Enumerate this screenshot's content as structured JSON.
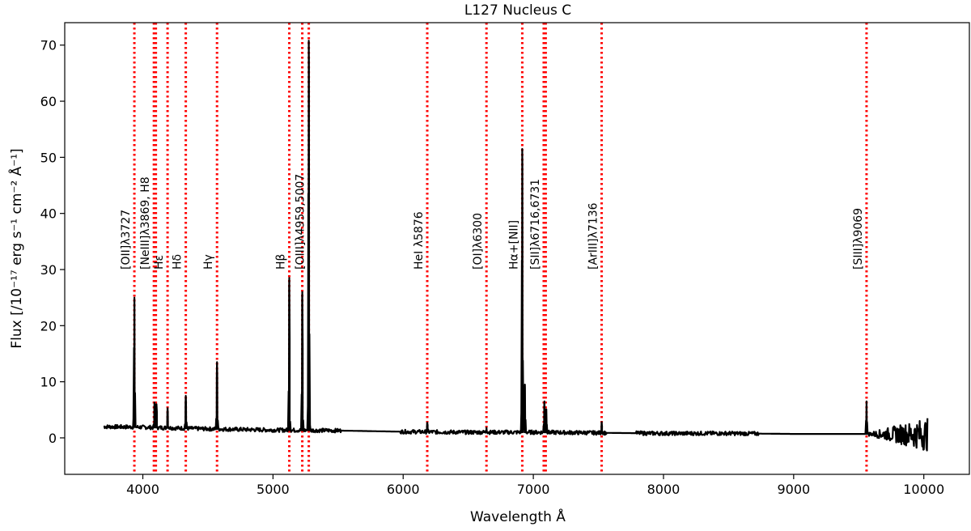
{
  "chart_data": {
    "type": "line",
    "title": "L127 Nucleus C",
    "xlabel": "Wavelength Å",
    "ylabel": "Flux  [/10⁻¹⁷ erg s⁻¹ cm⁻² Å⁻¹]",
    "xlim": [
      3400,
      10350
    ],
    "ylim": [
      -6.5,
      74
    ],
    "xticks": [
      4000,
      5000,
      6000,
      7000,
      8000,
      9000,
      10000
    ],
    "yticks": [
      0,
      10,
      20,
      30,
      40,
      50,
      60,
      70
    ],
    "grid": false,
    "series": [
      {
        "color": "#000000",
        "continuum": [
          [
            3700,
            2.0
          ],
          [
            4000,
            1.9
          ],
          [
            4500,
            1.6
          ],
          [
            5000,
            1.4
          ],
          [
            5500,
            1.3
          ],
          [
            6000,
            1.1
          ],
          [
            6500,
            1.0
          ],
          [
            7000,
            1.0
          ],
          [
            7500,
            0.9
          ],
          [
            8000,
            0.8
          ],
          [
            8500,
            0.8
          ],
          [
            9000,
            0.7
          ],
          [
            9500,
            0.7
          ],
          [
            10000,
            0.6
          ]
        ],
        "segments": [
          [
            3700,
            5520
          ],
          [
            5980,
            7560
          ],
          [
            7790,
            8730
          ],
          [
            9560,
            10030
          ]
        ],
        "lines": [
          {
            "x": 3935,
            "peak": 25.0
          },
          {
            "x": 4090,
            "peak": 6.3
          },
          {
            "x": 4105,
            "peak": 6.0
          },
          {
            "x": 4190,
            "peak": 5.3
          },
          {
            "x": 4330,
            "peak": 7.5
          },
          {
            "x": 4570,
            "peak": 13.5
          },
          {
            "x": 5125,
            "peak": 28.5
          },
          {
            "x": 5225,
            "peak": 26.0
          },
          {
            "x": 5275,
            "peak": 70.8
          },
          {
            "x": 6185,
            "peak": 2.7
          },
          {
            "x": 6640,
            "peak": 1.8
          },
          {
            "x": 6915,
            "peak": 51.5
          },
          {
            "x": 6935,
            "peak": 9.5
          },
          {
            "x": 7085,
            "peak": 6.5
          },
          {
            "x": 7100,
            "peak": 5.0
          },
          {
            "x": 7525,
            "peak": 2.8
          },
          {
            "x": 9560,
            "peak": 6.5
          }
        ]
      }
    ],
    "emission_lines": [
      {
        "label": "[OII]λ3727",
        "x": 3935
      },
      {
        "label": "[NeIII]λ3869, H8",
        "x": 4085
      },
      {
        "label": "",
        "x": 4100
      },
      {
        "label": "Hε",
        "x": 4190
      },
      {
        "label": "Hδ",
        "x": 4330
      },
      {
        "label": "Hγ",
        "x": 4570
      },
      {
        "label": "Hβ",
        "x": 5125
      },
      {
        "label": "",
        "x": 5225
      },
      {
        "label": "[OIII]λ4959,5007",
        "x": 5275
      },
      {
        "label": "HeI λ5876",
        "x": 6185
      },
      {
        "label": "[OI]λ6300",
        "x": 6640
      },
      {
        "label": "Hα+[NII]",
        "x": 6915
      },
      {
        "label": "[SII]λ6716,6731",
        "x": 7080
      },
      {
        "label": "",
        "x": 7095
      },
      {
        "label": "[ArIII]λ7136",
        "x": 7525
      },
      {
        "label": "[SIII]λ9069",
        "x": 9560
      }
    ],
    "marker_color": "#ff0000"
  }
}
